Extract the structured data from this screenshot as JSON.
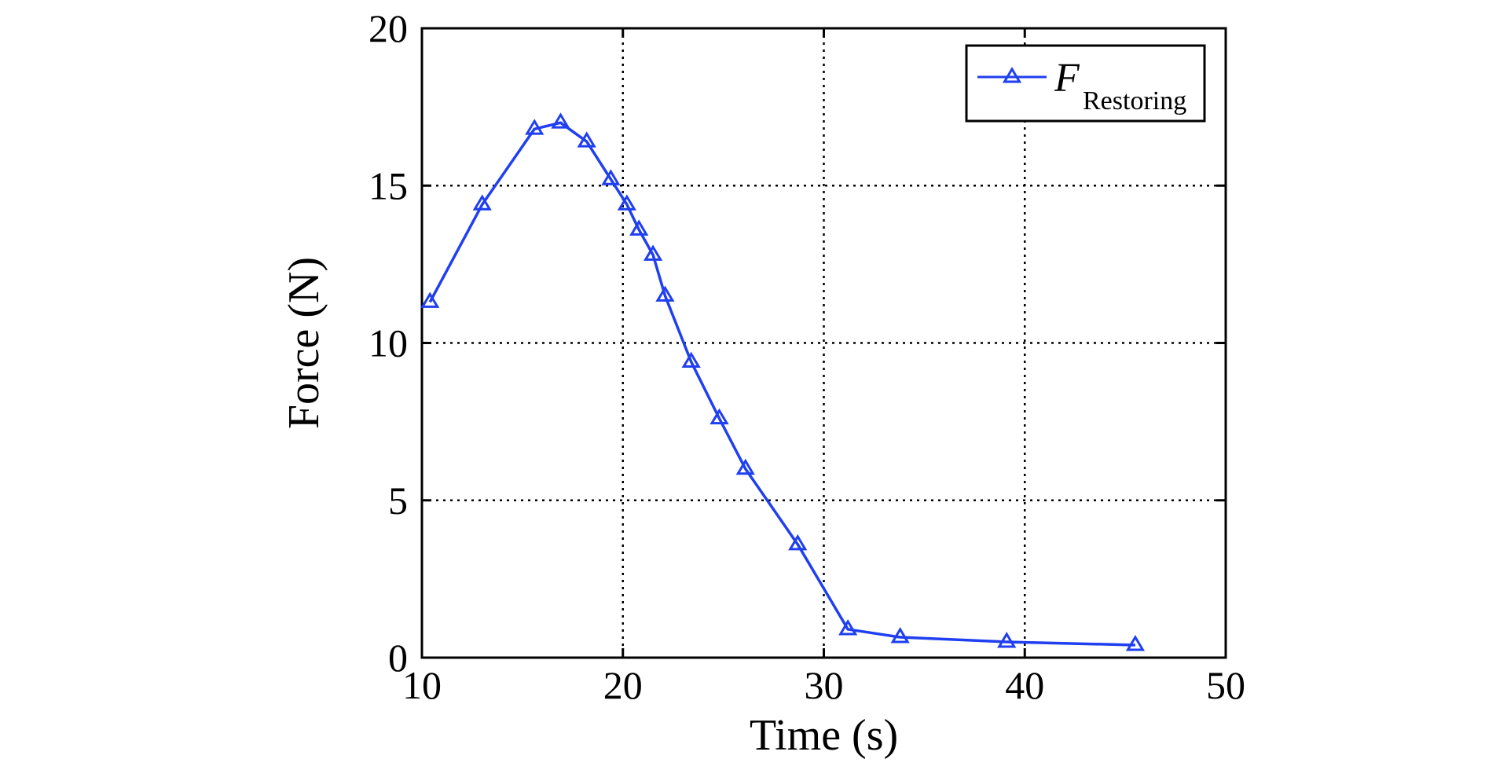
{
  "chart_data": {
    "type": "line",
    "title": "",
    "xlabel": "Time (s)",
    "ylabel": "Force (N)",
    "xlim": [
      10,
      50
    ],
    "ylim": [
      0,
      20
    ],
    "xticks": [
      "10",
      "20",
      "30",
      "40",
      "50"
    ],
    "yticks": [
      "0",
      "5",
      "10",
      "15",
      "20"
    ],
    "grid": true,
    "legend_position": "top-right",
    "series": [
      {
        "name": "F",
        "name_subscript": "Restoring",
        "color": "#1f3ff0",
        "marker": "triangle-open",
        "x": [
          10.4,
          13.0,
          15.6,
          16.9,
          18.2,
          19.4,
          20.2,
          20.8,
          21.5,
          22.1,
          23.4,
          24.8,
          26.1,
          28.7,
          31.2,
          33.8,
          39.1,
          45.5
        ],
        "y": [
          11.3,
          14.4,
          16.8,
          17.0,
          16.4,
          15.2,
          14.4,
          13.6,
          12.8,
          11.5,
          9.4,
          7.6,
          6.0,
          3.6,
          0.9,
          0.65,
          0.5,
          0.4
        ]
      }
    ]
  }
}
